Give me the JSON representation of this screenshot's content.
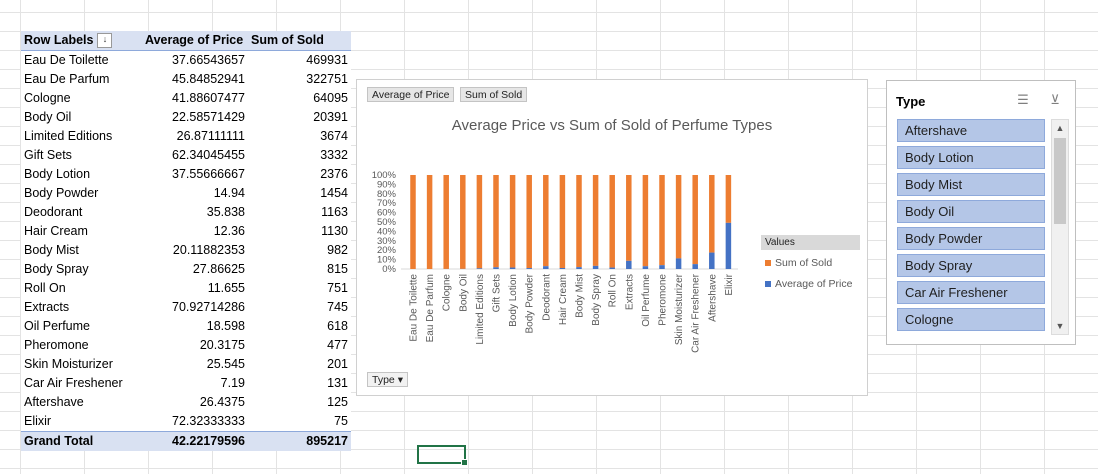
{
  "pivot": {
    "headers": {
      "row_labels": "Row Labels",
      "avg_price": "Average of Price",
      "sum_sold": "Sum of Sold"
    },
    "rows": [
      {
        "label": "Eau De Toilette",
        "avg": "37.66543657",
        "sum": "469931"
      },
      {
        "label": "Eau De Parfum",
        "avg": "45.84852941",
        "sum": "322751"
      },
      {
        "label": "Cologne",
        "avg": "41.88607477",
        "sum": "64095"
      },
      {
        "label": "Body Oil",
        "avg": "22.58571429",
        "sum": "20391"
      },
      {
        "label": "Limited Editions",
        "avg": "26.87111111",
        "sum": "3674"
      },
      {
        "label": "Gift Sets",
        "avg": "62.34045455",
        "sum": "3332"
      },
      {
        "label": "Body Lotion",
        "avg": "37.55666667",
        "sum": "2376"
      },
      {
        "label": "Body Powder",
        "avg": "14.94",
        "sum": "1454"
      },
      {
        "label": "Deodorant",
        "avg": "35.838",
        "sum": "1163"
      },
      {
        "label": "Hair Cream",
        "avg": "12.36",
        "sum": "1130"
      },
      {
        "label": "Body Mist",
        "avg": "20.11882353",
        "sum": "982"
      },
      {
        "label": "Body Spray",
        "avg": "27.86625",
        "sum": "815"
      },
      {
        "label": "Roll On",
        "avg": "11.655",
        "sum": "751"
      },
      {
        "label": "Extracts",
        "avg": "70.92714286",
        "sum": "745"
      },
      {
        "label": "Oil Perfume",
        "avg": "18.598",
        "sum": "618"
      },
      {
        "label": "Pheromone",
        "avg": "20.3175",
        "sum": "477"
      },
      {
        "label": "Skin Moisturizer",
        "avg": "25.545",
        "sum": "201"
      },
      {
        "label": "Car Air Freshener",
        "avg": "7.19",
        "sum": "131"
      },
      {
        "label": "Aftershave",
        "avg": "26.4375",
        "sum": "125"
      },
      {
        "label": "Elixir",
        "avg": "72.32333333",
        "sum": "75"
      }
    ],
    "grand_total": {
      "label": "Grand Total",
      "avg": "42.22179596",
      "sum": "895217"
    }
  },
  "chart": {
    "field_buttons": {
      "avg": "Average of Price",
      "sum": "Sum of Sold",
      "axis": "Type"
    },
    "legend_title": "Values",
    "colors": {
      "sum": "#ed7d31",
      "avg": "#4472c4",
      "axis_text": "#595959"
    }
  },
  "chart_data": {
    "type": "bar",
    "stacked": "100%",
    "title": "Average Price vs  Sum of Sold of Perfume Types",
    "categories": [
      "Eau De Toilette",
      "Eau De Parfum",
      "Cologne",
      "Body Oil",
      "Limited Editions",
      "Gift Sets",
      "Body Lotion",
      "Body Powder",
      "Deodorant",
      "Hair Cream",
      "Body Mist",
      "Body Spray",
      "Roll On",
      "Extracts",
      "Oil Perfume",
      "Pheromone",
      "Skin Moisturizer",
      "Car Air Freshener",
      "Aftershave",
      "Elixir"
    ],
    "series": [
      {
        "name": "Sum of Sold",
        "values": [
          469931,
          322751,
          64095,
          20391,
          3674,
          3332,
          2376,
          1454,
          1163,
          1130,
          982,
          815,
          751,
          745,
          618,
          477,
          201,
          131,
          125,
          75
        ]
      },
      {
        "name": "Average of Price",
        "values": [
          37.66543657,
          45.84852941,
          41.88607477,
          22.58571429,
          26.87111111,
          62.34045455,
          37.55666667,
          14.94,
          35.838,
          12.36,
          20.11882353,
          27.86625,
          11.655,
          70.92714286,
          18.598,
          20.3175,
          25.545,
          7.19,
          26.4375,
          72.32333333
        ]
      }
    ],
    "yticks": [
      "0%",
      "10%",
      "20%",
      "30%",
      "40%",
      "50%",
      "60%",
      "70%",
      "80%",
      "90%",
      "100%"
    ],
    "ylim": [
      0,
      1
    ],
    "legend": "right"
  },
  "slicer": {
    "title": "Type",
    "items": [
      "Aftershave",
      "Body Lotion",
      "Body Mist",
      "Body Oil",
      "Body Powder",
      "Body Spray",
      "Car Air Freshener",
      "Cologne"
    ]
  }
}
